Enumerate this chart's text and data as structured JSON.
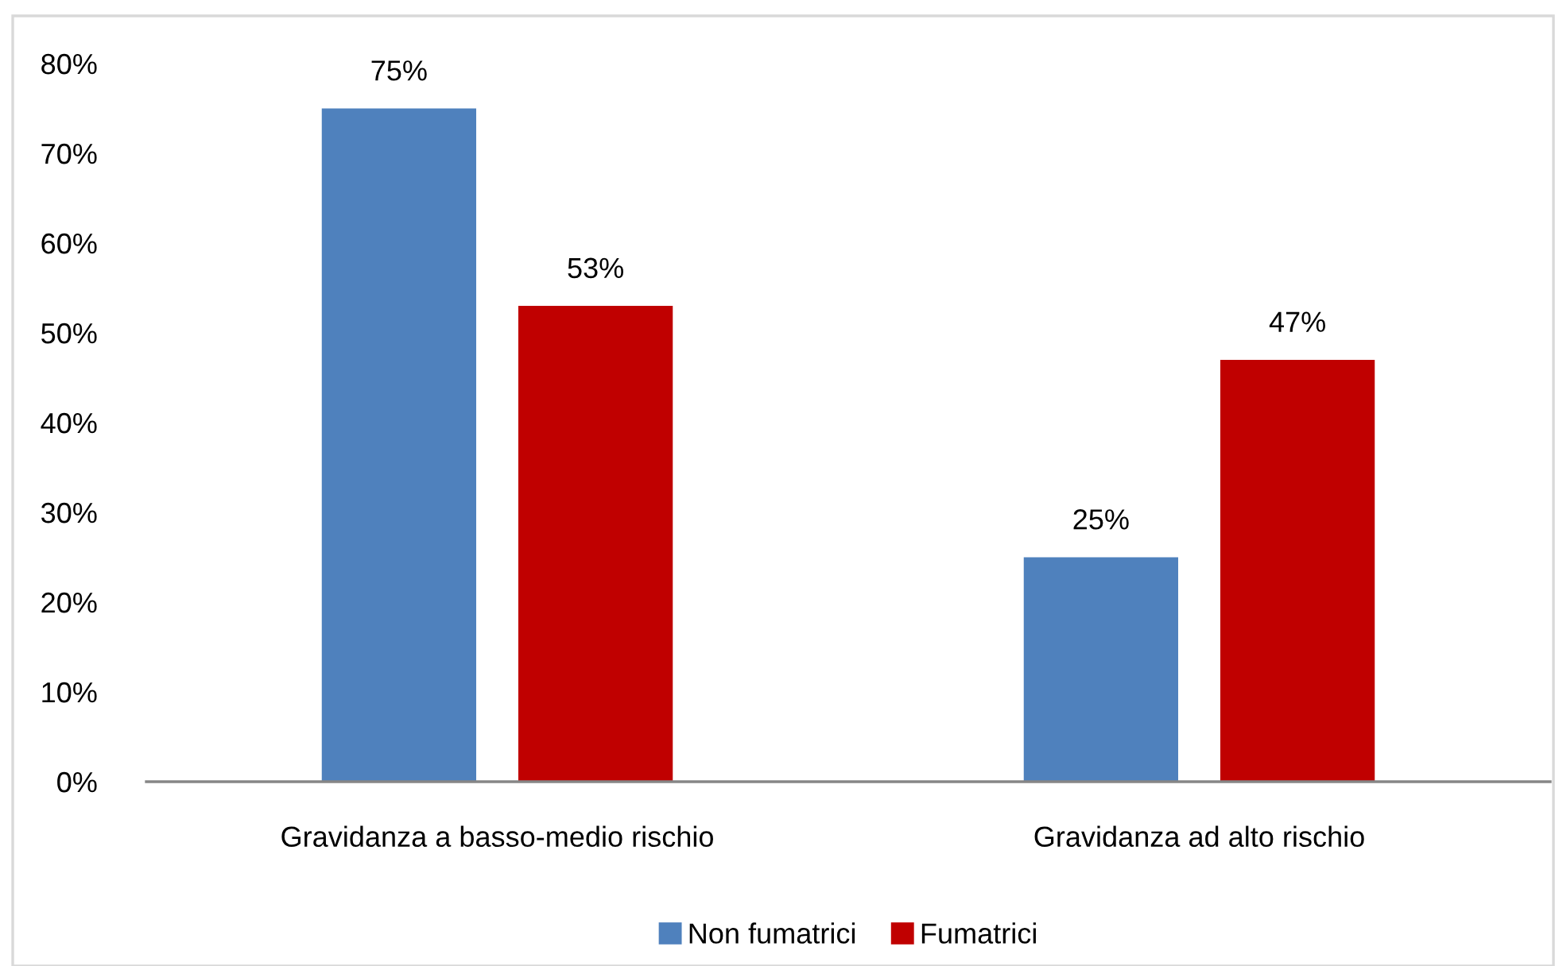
{
  "chart_data": {
    "type": "bar",
    "categories": [
      "Gravidanza a basso-medio rischio",
      "Gravidanza ad alto rischio"
    ],
    "series": [
      {
        "name": "Non fumatrici",
        "color": "#4f81bd",
        "values": [
          75,
          25
        ],
        "value_labels": [
          "75%",
          "25%"
        ]
      },
      {
        "name": "Fumatrici",
        "color": "#c00000",
        "values": [
          53,
          47
        ],
        "value_labels": [
          "53%",
          "47%"
        ]
      }
    ],
    "ylim": [
      0,
      80
    ],
    "yticks": [
      {
        "value": 0,
        "label": "0%"
      },
      {
        "value": 10,
        "label": "10%"
      },
      {
        "value": 20,
        "label": "20%"
      },
      {
        "value": 30,
        "label": "30%"
      },
      {
        "value": 40,
        "label": "40%"
      },
      {
        "value": 50,
        "label": "50%"
      },
      {
        "value": 60,
        "label": "60%"
      },
      {
        "value": 70,
        "label": "70%"
      },
      {
        "value": 80,
        "label": "80%"
      }
    ],
    "grid": false,
    "legend": "bottom"
  }
}
